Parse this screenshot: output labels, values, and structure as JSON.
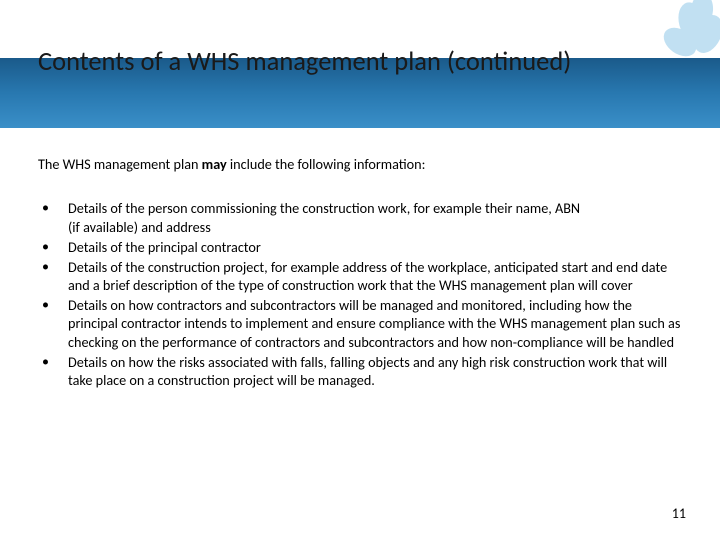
{
  "title": "Contents of a WHS management plan (continued)",
  "intro_prefix": "The WHS management plan ",
  "intro_bold": "may",
  "intro_suffix": " include the following information:",
  "bullets": [
    "Details of the person commissioning the construction work, for example their name, ABN\n(if available) and address",
    "Details of the principal contractor",
    "Details of the construction project, for example address of the workplace, anticipated start and end date and a brief description of the type of construction work that the WHS management plan will cover",
    "Details on how contractors and subcontractors will be managed and monitored, including how the principal contractor intends to implement and ensure compliance with the WHS management plan such as checking on the performance of contractors and subcontractors and how non-compliance will be handled",
    "Details on how the risks associated with falls, falling objects and any high risk construction work that will take place on a construction project will be managed."
  ],
  "page_number": "11",
  "colors": {
    "band_top": "#1a5a8a",
    "band_bottom": "#3a8fc8",
    "decor": "#6fb8e0"
  }
}
